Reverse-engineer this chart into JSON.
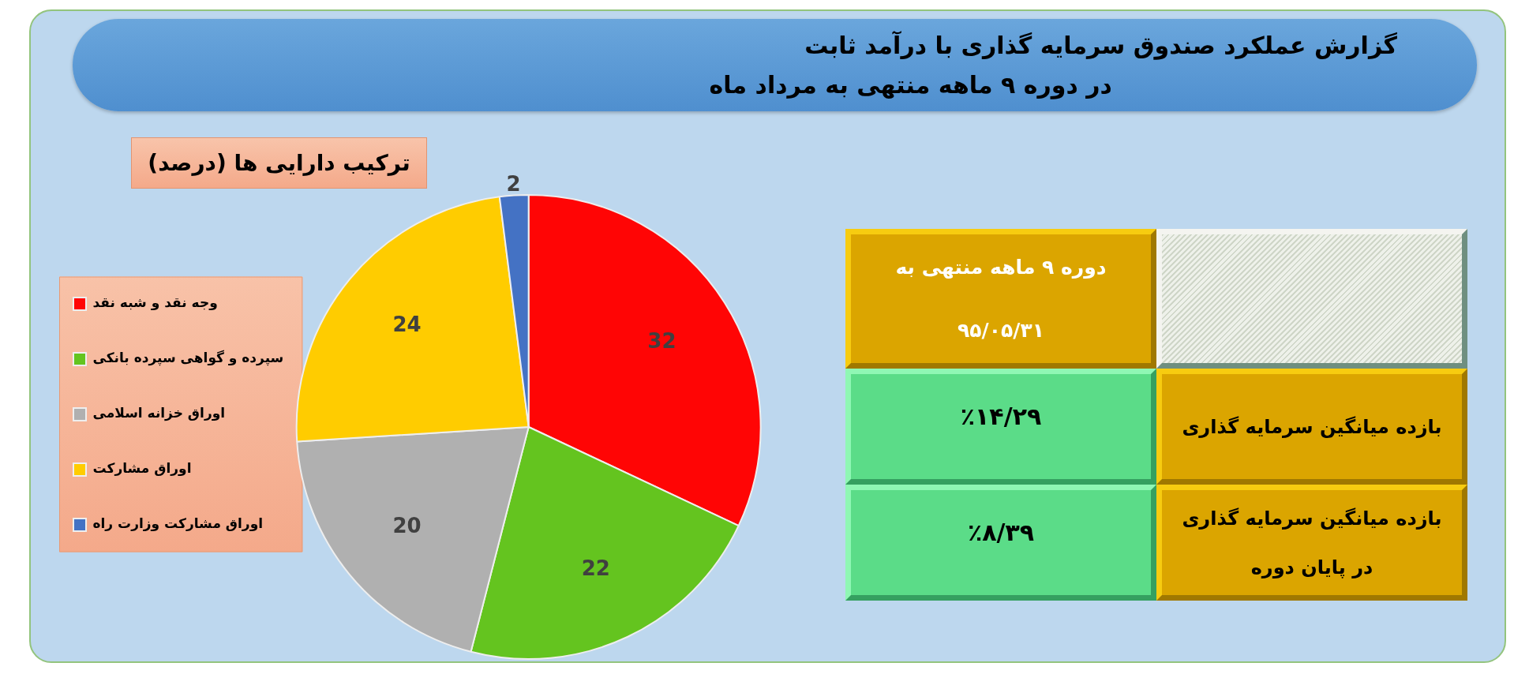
{
  "chart_data": [
    {
      "type": "other",
      "title": "گزارش عملکرد صندوق سرمایه گذاری با درآمد ثابت",
      "subtitle": "در دوره ۹ ماهه منتهی به مرداد ماه"
    },
    {
      "type": "pie",
      "title": "ترکیب دارایی ها (درصد)",
      "categories": [
        "وجه نقد و شبه نقد",
        "سپرده و گواهی سپرده بانکی",
        "اوراق خزانه اسلامی",
        "اوراق مشارکت",
        "اوراق مشارکت وزارت راه"
      ],
      "values": [
        32,
        22,
        20,
        24,
        2
      ],
      "colors": [
        "#ff0505",
        "#64c41f",
        "#b0b0b0",
        "#ffcc00",
        "#4472c4"
      ],
      "data_labels": true,
      "legend": "left"
    },
    {
      "type": "other",
      "categories": [
        "دوره ۹ ماهه منتهی به ۹۵/۰۵/۳۱"
      ],
      "y_categories": [
        "بازده میانگین سرمایه گذاری",
        "بازده میانگین سرمایه گذاری در پایان دوره"
      ],
      "cell_labels": [
        [
          "٪۱۴/۲۹"
        ],
        [
          "٪۸/۳۹"
        ]
      ]
    }
  ]
}
